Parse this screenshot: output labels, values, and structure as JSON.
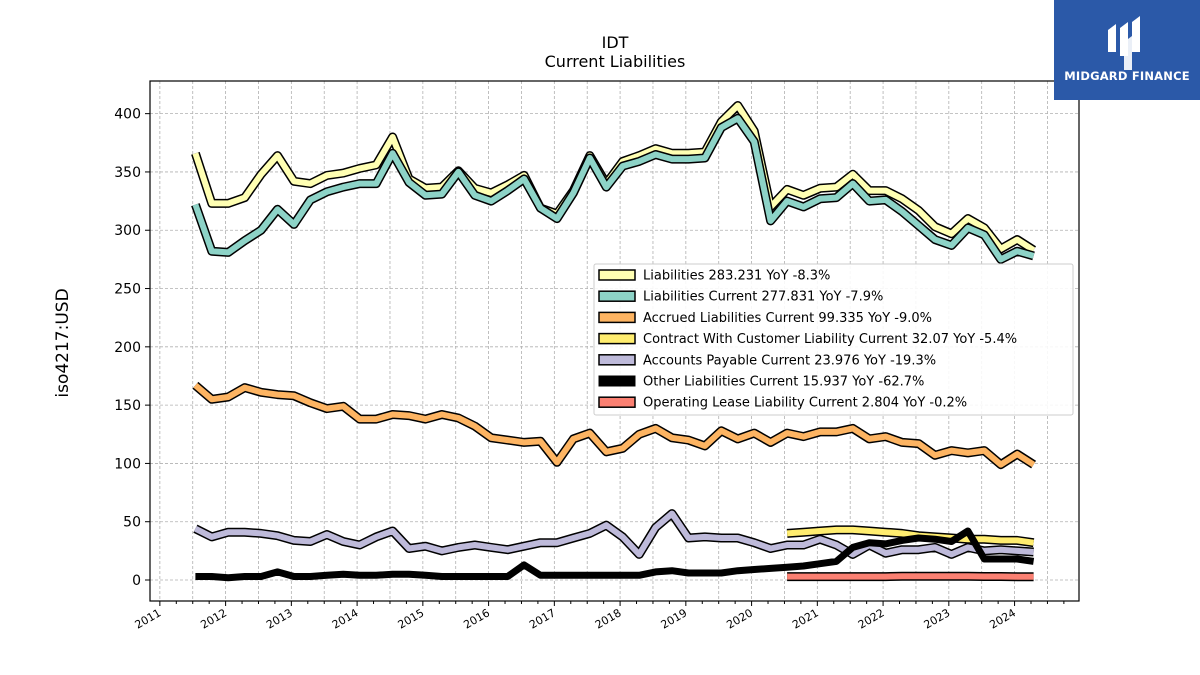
{
  "brand": {
    "name": "MIDGARD FINANCE",
    "logo_icon": "midgard-logo-icon",
    "background": "#2b59a8"
  },
  "chart_data": {
    "type": "line",
    "title": "IDT",
    "subtitle": "Current  Liabilities",
    "xlabel": "",
    "ylabel": "iso4217:USD",
    "xlim": [
      2010.85,
      2024.98
    ],
    "ylim": [
      -18,
      428
    ],
    "x_ticks": [
      "2011",
      "2012",
      "2013",
      "2014",
      "2015",
      "2016",
      "2017",
      "2018",
      "2019",
      "2020",
      "2021",
      "2022",
      "2023",
      "2024"
    ],
    "y_ticks": [
      0,
      50,
      100,
      150,
      200,
      250,
      300,
      350,
      400
    ],
    "grid": true,
    "legend_position": "center-right",
    "series": [
      {
        "name": "Liabilities",
        "legend": "Liabilities  283.231 YoY -8.3%",
        "color": "#ffffb3",
        "width": 6,
        "x": [
          2011.54,
          2011.79,
          2012.04,
          2012.29,
          2012.54,
          2012.79,
          2013.04,
          2013.29,
          2013.54,
          2013.79,
          2014.04,
          2014.29,
          2014.54,
          2014.79,
          2015.04,
          2015.29,
          2015.54,
          2015.79,
          2016.04,
          2016.29,
          2016.54,
          2016.79,
          2017.04,
          2017.29,
          2017.54,
          2017.79,
          2018.04,
          2018.29,
          2018.54,
          2018.79,
          2019.04,
          2019.29,
          2019.54,
          2019.79,
          2020.04,
          2020.29,
          2020.54,
          2020.79,
          2021.04,
          2021.29,
          2021.54,
          2021.79,
          2022.04,
          2022.29,
          2022.54,
          2022.79,
          2023.04,
          2023.29,
          2023.54,
          2023.79,
          2024.04,
          2024.29
        ],
        "y": [
          366,
          323,
          323,
          328,
          348,
          364,
          342,
          340,
          347,
          349,
          353,
          356,
          380,
          344,
          336,
          337,
          351,
          336,
          332,
          339,
          347,
          319,
          314,
          334,
          364,
          340,
          359,
          364,
          370,
          366,
          366,
          367,
          393,
          407,
          385,
          320,
          335,
          330,
          336,
          337,
          348,
          334,
          334,
          327,
          317,
          303,
          297,
          310,
          302,
          284,
          292,
          283
        ]
      },
      {
        "name": "Liabilities Current",
        "legend": "Liabilities Current  277.831 YoY -7.9%",
        "color": "#8dd3c7",
        "width": 6,
        "x": [
          2011.54,
          2011.79,
          2012.04,
          2012.29,
          2012.54,
          2012.79,
          2013.04,
          2013.29,
          2013.54,
          2013.79,
          2014.04,
          2014.29,
          2014.54,
          2014.79,
          2015.04,
          2015.29,
          2015.54,
          2015.79,
          2016.04,
          2016.29,
          2016.54,
          2016.79,
          2017.04,
          2017.29,
          2017.54,
          2017.79,
          2018.04,
          2018.29,
          2018.54,
          2018.79,
          2019.04,
          2019.29,
          2019.54,
          2019.79,
          2020.04,
          2020.29,
          2020.54,
          2020.79,
          2021.04,
          2021.29,
          2021.54,
          2021.79,
          2022.04,
          2022.29,
          2022.54,
          2022.79,
          2023.04,
          2023.29,
          2023.54,
          2023.79,
          2024.04,
          2024.29
        ],
        "y": [
          322,
          282,
          281,
          291,
          300,
          318,
          305,
          326,
          333,
          337,
          340,
          340,
          366,
          341,
          330,
          331,
          350,
          330,
          325,
          334,
          344,
          319,
          310,
          332,
          362,
          337,
          355,
          359,
          365,
          361,
          361,
          362,
          388,
          396,
          376,
          308,
          325,
          320,
          327,
          328,
          340,
          325,
          326,
          316,
          304,
          292,
          287,
          302,
          296,
          275,
          282,
          278
        ]
      },
      {
        "name": "Accrued Liabilities Current",
        "legend": "Accrued Liabilities Current  99.335 YoY -9.0%",
        "color": "#fdb462",
        "width": 6,
        "x": [
          2011.54,
          2011.79,
          2012.04,
          2012.29,
          2012.54,
          2012.79,
          2013.04,
          2013.29,
          2013.54,
          2013.79,
          2014.04,
          2014.29,
          2014.54,
          2014.79,
          2015.04,
          2015.29,
          2015.54,
          2015.79,
          2016.04,
          2016.29,
          2016.54,
          2016.79,
          2017.04,
          2017.29,
          2017.54,
          2017.79,
          2018.04,
          2018.29,
          2018.54,
          2018.79,
          2019.04,
          2019.29,
          2019.54,
          2019.79,
          2020.04,
          2020.29,
          2020.54,
          2020.79,
          2021.04,
          2021.29,
          2021.54,
          2021.79,
          2022.04,
          2022.29,
          2022.54,
          2022.79,
          2023.04,
          2023.29,
          2023.54,
          2023.79,
          2024.04,
          2024.29
        ],
        "y": [
          167,
          155,
          157,
          165,
          161,
          159,
          158,
          152,
          147,
          149,
          138,
          138,
          142,
          141,
          138,
          142,
          139,
          132,
          122,
          120,
          118,
          119,
          101,
          121,
          126,
          110,
          113,
          125,
          130,
          122,
          120,
          115,
          128,
          121,
          126,
          118,
          126,
          123,
          127,
          127,
          130,
          121,
          123,
          118,
          117,
          107,
          111,
          109,
          111,
          99,
          108,
          99
        ]
      },
      {
        "name": "Contract With Customer Liability Current",
        "legend": "Contract With Customer Liability Current  32.07 YoY -5.4%",
        "color": "#ffed6f",
        "width": 6,
        "x": [
          2020.54,
          2020.79,
          2021.04,
          2021.29,
          2021.54,
          2021.79,
          2022.04,
          2022.29,
          2022.54,
          2022.79,
          2023.04,
          2023.29,
          2023.54,
          2023.79,
          2024.04,
          2024.29
        ],
        "y": [
          40,
          41,
          42,
          43,
          43,
          42,
          41,
          40,
          38,
          37,
          36,
          35,
          35,
          34,
          34,
          32
        ]
      },
      {
        "name": "Accounts Payable Current",
        "legend": "Accounts Payable Current  23.976 YoY -19.3%",
        "color": "#bebada",
        "width": 6,
        "x": [
          2011.54,
          2011.79,
          2012.04,
          2012.29,
          2012.54,
          2012.79,
          2013.04,
          2013.29,
          2013.54,
          2013.79,
          2014.04,
          2014.29,
          2014.54,
          2014.79,
          2015.04,
          2015.29,
          2015.54,
          2015.79,
          2016.04,
          2016.29,
          2016.54,
          2016.79,
          2017.04,
          2017.29,
          2017.54,
          2017.79,
          2018.04,
          2018.29,
          2018.54,
          2018.79,
          2019.04,
          2019.29,
          2019.54,
          2019.79,
          2020.04,
          2020.29,
          2020.54,
          2020.79,
          2021.04,
          2021.29,
          2021.54,
          2021.79,
          2022.04,
          2022.29,
          2022.54,
          2022.79,
          2023.04,
          2023.29,
          2023.54,
          2023.79,
          2024.04,
          2024.29
        ],
        "y": [
          44,
          37,
          41,
          41,
          40,
          38,
          34,
          33,
          39,
          33,
          30,
          37,
          42,
          27,
          29,
          25,
          28,
          30,
          28,
          26,
          29,
          32,
          32,
          36,
          40,
          47,
          37,
          22,
          45,
          57,
          36,
          37,
          36,
          36,
          32,
          27,
          30,
          30,
          35,
          30,
          22,
          30,
          23,
          26,
          26,
          28,
          22,
          28,
          25,
          26,
          25,
          24
        ]
      },
      {
        "name": "Other Liabilities Current",
        "legend": "Other Liabilities Current  15.937 YoY -62.7%",
        "color": "#000000",
        "width": 7,
        "x": [
          2011.54,
          2011.79,
          2012.04,
          2012.29,
          2012.54,
          2012.79,
          2013.04,
          2013.29,
          2013.54,
          2013.79,
          2014.04,
          2014.29,
          2014.54,
          2014.79,
          2015.04,
          2015.29,
          2015.54,
          2015.79,
          2016.04,
          2016.29,
          2016.54,
          2016.79,
          2017.04,
          2017.29,
          2017.54,
          2017.79,
          2018.04,
          2018.29,
          2018.54,
          2018.79,
          2019.04,
          2019.29,
          2019.54,
          2019.79,
          2020.04,
          2020.29,
          2020.54,
          2020.79,
          2021.04,
          2021.29,
          2021.54,
          2021.79,
          2022.04,
          2022.29,
          2022.54,
          2022.79,
          2023.04,
          2023.29,
          2023.54,
          2023.79,
          2024.04,
          2024.29
        ],
        "y": [
          3,
          3,
          2,
          3,
          3,
          7,
          3,
          3,
          4,
          5,
          4,
          4,
          5,
          5,
          4,
          3,
          3,
          3,
          3,
          3,
          13,
          4,
          4,
          4,
          4,
          4,
          4,
          4,
          7,
          8,
          6,
          6,
          6,
          8,
          9,
          10,
          11,
          12,
          14,
          16,
          28,
          32,
          31,
          34,
          36,
          35,
          33,
          42,
          18,
          18,
          18,
          16
        ]
      },
      {
        "name": "Operating Lease Liability Current",
        "legend": "Operating Lease Liability Current  2.804 YoY -0.2%",
        "color": "#fb8072",
        "width": 6,
        "x": [
          2020.54,
          2020.79,
          2021.04,
          2021.29,
          2021.54,
          2021.79,
          2022.04,
          2022.29,
          2022.54,
          2022.79,
          2023.04,
          2023.29,
          2023.54,
          2023.79,
          2024.04,
          2024.29
        ],
        "y": [
          2.9,
          2.9,
          2.9,
          2.9,
          2.9,
          2.9,
          2.9,
          3.2,
          3.2,
          3.2,
          3.2,
          3.2,
          3.0,
          3.0,
          2.8,
          2.8
        ]
      }
    ]
  }
}
